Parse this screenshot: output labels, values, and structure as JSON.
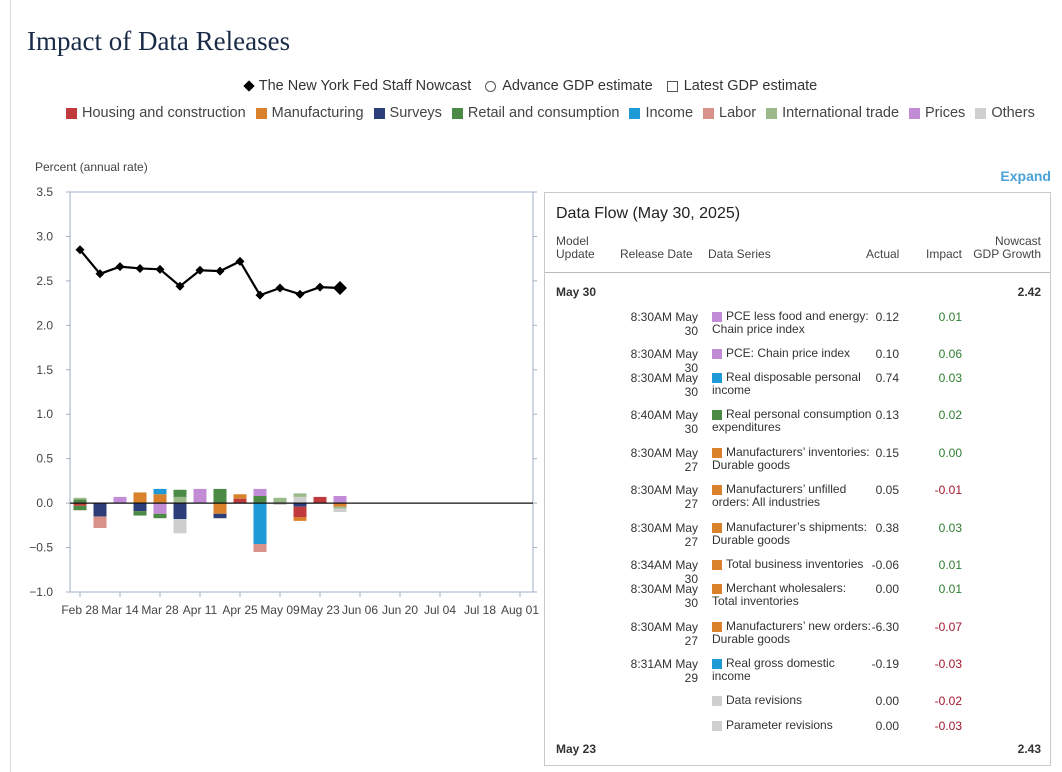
{
  "title": "Impact of Data Releases",
  "legend_markers": [
    {
      "label": "The New York Fed Staff Nowcast",
      "icon": "diamond-icon"
    },
    {
      "label": "Advance GDP estimate",
      "icon": "circle-icon"
    },
    {
      "label": "Latest GDP estimate",
      "icon": "square-icon"
    }
  ],
  "categories": [
    {
      "label": "Housing and construction",
      "color": "#c0393c"
    },
    {
      "label": "Manufacturing",
      "color": "#d9822b"
    },
    {
      "label": "Surveys",
      "color": "#2c3e7a"
    },
    {
      "label": "Retail and consumption",
      "color": "#4a8a45"
    },
    {
      "label": "Income",
      "color": "#1e9ad6"
    },
    {
      "label": "Labor",
      "color": "#d9928a"
    },
    {
      "label": "International trade",
      "color": "#9cb98a"
    },
    {
      "label": "Prices",
      "color": "#c28bd6"
    },
    {
      "label": "Others",
      "color": "#cfcfcf"
    }
  ],
  "expand_label": "Expand",
  "chart_data": {
    "type": "line",
    "ylabel": "Percent (annual rate)",
    "ylim": [
      -1.0,
      3.5
    ],
    "yticks": [
      "3.5",
      "3.0",
      "2.5",
      "2.0",
      "1.5",
      "1.0",
      "0.5",
      "0.0",
      "−0.5",
      "−1.0"
    ],
    "ytick_values": [
      3.5,
      3.0,
      2.5,
      2.0,
      1.5,
      1.0,
      0.5,
      0.0,
      -0.5,
      -1.0
    ],
    "x_tick_labels": [
      "Feb 28",
      "Mar 14",
      "Mar 28",
      "Apr 11",
      "Apr 25",
      "May 09",
      "May 23",
      "Jun 06",
      "Jun 20",
      "Jul 04",
      "Jul 18",
      "Aug 01"
    ],
    "x_range_weeks": [
      0,
      23
    ],
    "nowcast_series": {
      "name": "The New York Fed Staff Nowcast",
      "week_index": [
        0,
        1,
        2,
        3,
        4,
        5,
        6,
        7,
        8,
        9,
        10,
        11,
        12,
        13
      ],
      "values": [
        2.85,
        2.58,
        2.66,
        2.64,
        2.63,
        2.44,
        2.62,
        2.61,
        2.72,
        2.34,
        2.42,
        2.35,
        2.43,
        2.42
      ]
    },
    "impact_bars": [
      {
        "week": 0,
        "segments": [
          {
            "c": 3,
            "v": 0.04
          },
          {
            "c": 6,
            "v": 0.02
          },
          {
            "c": 0,
            "v": -0.03
          },
          {
            "c": 3,
            "v": -0.05
          }
        ]
      },
      {
        "week": 1,
        "segments": [
          {
            "c": 2,
            "v": -0.15
          },
          {
            "c": 5,
            "v": -0.13
          }
        ]
      },
      {
        "week": 2,
        "segments": [
          {
            "c": 7,
            "v": 0.07
          }
        ]
      },
      {
        "week": 3,
        "segments": [
          {
            "c": 1,
            "v": 0.12
          },
          {
            "c": 2,
            "v": -0.09
          },
          {
            "c": 3,
            "v": -0.05
          }
        ]
      },
      {
        "week": 4,
        "segments": [
          {
            "c": 1,
            "v": 0.1
          },
          {
            "c": 4,
            "v": 0.06
          },
          {
            "c": 7,
            "v": -0.12
          },
          {
            "c": 3,
            "v": -0.05
          }
        ]
      },
      {
        "week": 5,
        "segments": [
          {
            "c": 6,
            "v": 0.07
          },
          {
            "c": 3,
            "v": 0.08
          },
          {
            "c": 2,
            "v": -0.18
          },
          {
            "c": 8,
            "v": -0.16
          }
        ]
      },
      {
        "week": 6,
        "segments": [
          {
            "c": 7,
            "v": 0.16
          }
        ]
      },
      {
        "week": 7,
        "segments": [
          {
            "c": 3,
            "v": 0.16
          },
          {
            "c": 1,
            "v": -0.12
          },
          {
            "c": 2,
            "v": -0.05
          }
        ]
      },
      {
        "week": 8,
        "segments": [
          {
            "c": 0,
            "v": 0.05
          },
          {
            "c": 1,
            "v": 0.05
          }
        ]
      },
      {
        "week": 9,
        "segments": [
          {
            "c": 3,
            "v": 0.08
          },
          {
            "c": 7,
            "v": 0.08
          },
          {
            "c": 4,
            "v": -0.46
          },
          {
            "c": 5,
            "v": -0.09
          }
        ]
      },
      {
        "week": 10,
        "segments": [
          {
            "c": 6,
            "v": 0.06
          },
          {
            "c": 8,
            "v": -0.02
          }
        ]
      },
      {
        "week": 11,
        "segments": [
          {
            "c": 8,
            "v": 0.07
          },
          {
            "c": 6,
            "v": 0.04
          },
          {
            "c": 2,
            "v": -0.04
          },
          {
            "c": 0,
            "v": -0.12
          },
          {
            "c": 1,
            "v": -0.04
          }
        ]
      },
      {
        "week": 12,
        "segments": [
          {
            "c": 0,
            "v": 0.07
          }
        ]
      },
      {
        "week": 13,
        "segments": [
          {
            "c": 7,
            "v": 0.08
          },
          {
            "c": 1,
            "v": -0.04
          },
          {
            "c": 6,
            "v": -0.02
          },
          {
            "c": 8,
            "v": -0.04
          }
        ]
      }
    ]
  },
  "panel": {
    "title": "Data Flow (May 30, 2025)",
    "headers": {
      "model_update_1": "Model",
      "model_update_2": "Update",
      "release_date": "Release Date",
      "data_series": "Data Series",
      "actual": "Actual",
      "impact": "Impact",
      "nowcast_1": "Nowcast",
      "nowcast_2": "GDP Growth"
    },
    "groups": [
      {
        "date": "May 30",
        "growth": "2.42"
      },
      {
        "date": "May 23",
        "growth": "2.43"
      }
    ],
    "rows": [
      {
        "release": "8:30AM May 30",
        "series": "PCE less food and energy: Chain price index",
        "color": "#c28bd6",
        "actual": "0.12",
        "impact": "0.01",
        "sign": "pos"
      },
      {
        "release": "8:30AM May 30",
        "series": "PCE: Chain price index",
        "color": "#c28bd6",
        "actual": "0.10",
        "impact": "0.06",
        "sign": "pos"
      },
      {
        "release": "8:30AM May 30",
        "series": "Real disposable personal income",
        "color": "#1e9ad6",
        "actual": "0.74",
        "impact": "0.03",
        "sign": "pos"
      },
      {
        "release": "8:40AM May 30",
        "series": "Real personal consumption expenditures",
        "color": "#4a8a45",
        "actual": "0.13",
        "impact": "0.02",
        "sign": "pos"
      },
      {
        "release": "8:30AM May 27",
        "series": "Manufacturers’ inventories: Durable goods",
        "color": "#d9822b",
        "actual": "0.15",
        "impact": "0.00",
        "sign": "zero"
      },
      {
        "release": "8:30AM May 27",
        "series": "Manufacturers’ unfilled orders: All industries",
        "color": "#d9822b",
        "actual": "0.05",
        "impact": "-0.01",
        "sign": "neg"
      },
      {
        "release": "8:30AM May 27",
        "series": "Manufacturer’s shipments: Durable goods",
        "color": "#d9822b",
        "actual": "0.38",
        "impact": "0.03",
        "sign": "pos"
      },
      {
        "release": "8:34AM May 30",
        "series": "Total business inventories",
        "color": "#d9822b",
        "actual": "-0.06",
        "impact": "0.01",
        "sign": "pos"
      },
      {
        "release": "8:30AM May 30",
        "series": "Merchant wholesalers: Total inventories",
        "color": "#d9822b",
        "actual": "0.00",
        "impact": "0.01",
        "sign": "pos"
      },
      {
        "release": "8:30AM May 27",
        "series": "Manufacturers’ new orders: Durable goods",
        "color": "#d9822b",
        "actual": "-6.30",
        "impact": "-0.07",
        "sign": "neg"
      },
      {
        "release": "8:31AM May 29",
        "series": "Real gross domestic income",
        "color": "#1e9ad6",
        "actual": "-0.19",
        "impact": "-0.03",
        "sign": "neg"
      },
      {
        "release": "",
        "series": "Data revisions",
        "color": "#cfcfcf",
        "actual": "0.00",
        "impact": "-0.02",
        "sign": "neg"
      },
      {
        "release": "",
        "series": "Parameter revisions",
        "color": "#cfcfcf",
        "actual": "0.00",
        "impact": "-0.03",
        "sign": "neg"
      }
    ]
  }
}
